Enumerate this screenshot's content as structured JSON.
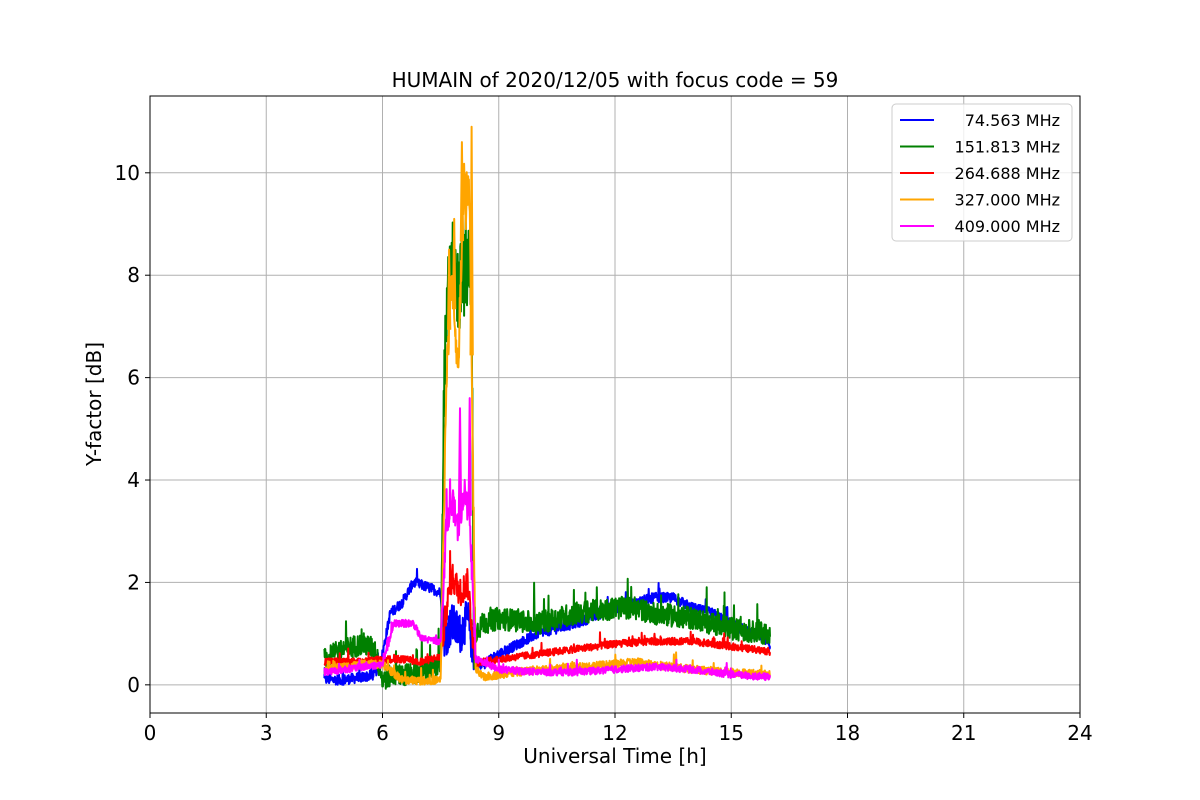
{
  "chart_data": {
    "type": "line",
    "title": "HUMAIN of 2020/12/05 with focus code = 59",
    "xlabel": "Universal Time [h]",
    "ylabel": "Y-factor [dB]",
    "xlim": [
      0,
      24
    ],
    "ylim": [
      -0.55,
      11.5
    ],
    "xticks": [
      "0",
      "3",
      "6",
      "9",
      "12",
      "15",
      "18",
      "21",
      "24"
    ],
    "yticks": [
      "0",
      "2",
      "4",
      "6",
      "8",
      "10"
    ],
    "grid": true,
    "legend_position": "top-right",
    "series": [
      {
        "name": "74.563 MHz",
        "color": "#0000ff",
        "x": [
          4.5,
          5.0,
          5.5,
          5.8,
          6.0,
          6.2,
          6.5,
          6.8,
          7.2,
          7.5,
          7.6,
          7.8,
          8.0,
          8.2,
          8.4,
          8.6,
          9.0,
          9.5,
          10.0,
          11.0,
          12.0,
          12.5,
          13.0,
          13.5,
          14.0,
          14.5,
          15.0,
          15.5,
          16.0
        ],
        "y": [
          0.1,
          0.1,
          0.15,
          0.2,
          0.6,
          1.4,
          1.6,
          2.0,
          1.9,
          1.8,
          0.9,
          1.2,
          1.0,
          1.3,
          0.4,
          0.4,
          0.6,
          0.8,
          1.0,
          1.2,
          1.5,
          1.6,
          1.7,
          1.7,
          1.5,
          1.4,
          1.2,
          1.0,
          0.8
        ],
        "noise": 0.1
      },
      {
        "name": "151.813 MHz",
        "color": "#008000",
        "x": [
          4.5,
          5.0,
          5.5,
          5.8,
          6.0,
          6.3,
          6.8,
          7.2,
          7.5,
          7.6,
          7.75,
          7.9,
          8.1,
          8.3,
          8.35,
          8.6,
          9.0,
          10.0,
          11.0,
          12.0,
          12.5,
          13.0,
          14.0,
          15.0,
          16.0
        ],
        "y": [
          0.5,
          0.7,
          0.8,
          0.7,
          0.1,
          0.2,
          0.2,
          0.3,
          0.4,
          6.0,
          8.6,
          7.6,
          8.0,
          8.2,
          1.0,
          1.2,
          1.3,
          1.2,
          1.4,
          1.5,
          1.5,
          1.4,
          1.3,
          1.1,
          1.0
        ],
        "noise": 0.22
      },
      {
        "name": "264.688 MHz",
        "color": "#ff0000",
        "x": [
          4.5,
          5.0,
          5.5,
          6.0,
          6.5,
          7.0,
          7.5,
          7.65,
          7.8,
          8.0,
          8.2,
          8.4,
          8.6,
          9.0,
          10.0,
          11.0,
          12.0,
          13.0,
          14.0,
          15.0,
          16.0
        ],
        "y": [
          0.45,
          0.45,
          0.45,
          0.5,
          0.5,
          0.45,
          0.55,
          1.5,
          2.1,
          1.8,
          2.0,
          0.4,
          0.45,
          0.5,
          0.6,
          0.7,
          0.8,
          0.85,
          0.85,
          0.75,
          0.65
        ],
        "noise": 0.07
      },
      {
        "name": "327.000 MHz",
        "color": "#ffa500",
        "x": [
          4.5,
          5.0,
          5.5,
          6.0,
          6.5,
          7.0,
          7.5,
          7.65,
          7.8,
          7.95,
          8.1,
          8.25,
          8.4,
          8.6,
          9.0,
          10.0,
          11.0,
          12.0,
          12.5,
          13.0,
          14.0,
          15.0,
          16.0
        ],
        "y": [
          0.3,
          0.35,
          0.4,
          0.4,
          0.1,
          0.08,
          0.1,
          6.0,
          8.0,
          6.0,
          10.0,
          9.5,
          0.3,
          0.15,
          0.2,
          0.3,
          0.35,
          0.4,
          0.45,
          0.4,
          0.3,
          0.25,
          0.2
        ],
        "noise": 0.08,
        "spikes": [
          [
            7.72,
            8.5
          ],
          [
            7.85,
            9.1
          ],
          [
            8.05,
            10.6
          ],
          [
            8.3,
            10.9
          ],
          [
            8.15,
            8.9
          ]
        ]
      },
      {
        "name": "409.000 MHz",
        "color": "#ff00ff",
        "x": [
          4.5,
          5.0,
          5.5,
          6.0,
          6.3,
          6.8,
          7.0,
          7.5,
          7.65,
          7.8,
          7.95,
          8.1,
          8.25,
          8.4,
          8.6,
          9.0,
          10.0,
          11.0,
          12.0,
          13.0,
          14.0,
          15.0,
          16.0
        ],
        "y": [
          0.25,
          0.3,
          0.35,
          0.4,
          1.2,
          1.2,
          0.9,
          0.85,
          3.2,
          3.6,
          3.0,
          3.8,
          3.3,
          0.5,
          0.45,
          0.3,
          0.25,
          0.25,
          0.3,
          0.35,
          0.3,
          0.2,
          0.15
        ],
        "noise": 0.07,
        "spikes": [
          [
            8.0,
            5.4
          ],
          [
            8.25,
            5.6
          ]
        ]
      }
    ]
  }
}
